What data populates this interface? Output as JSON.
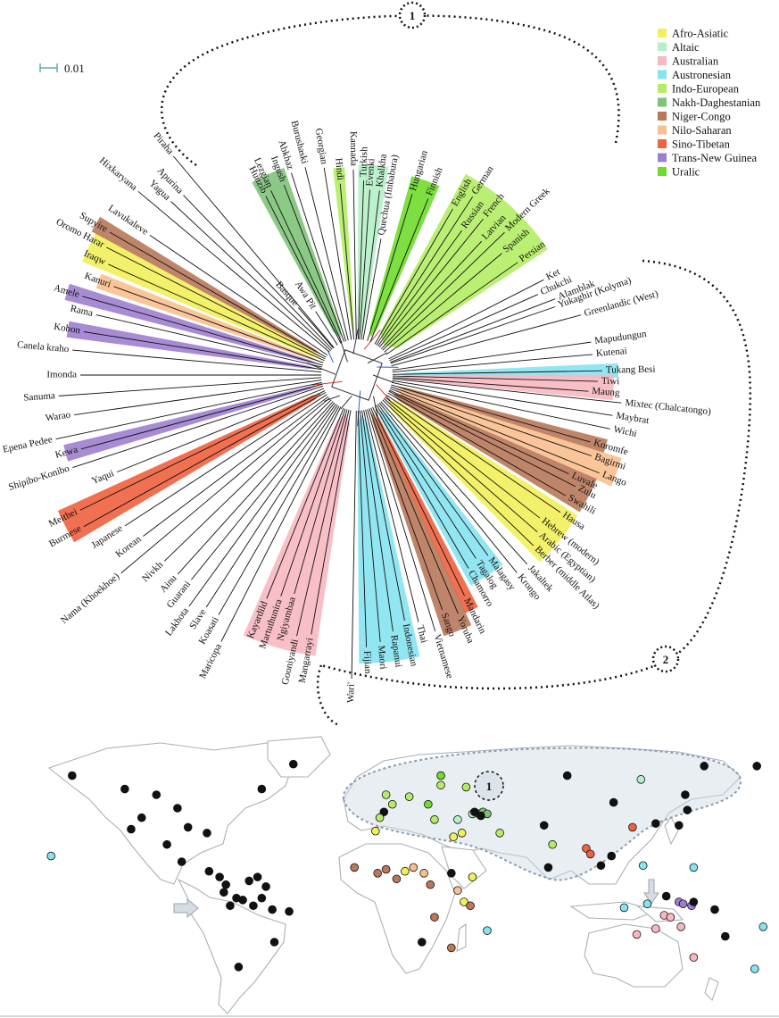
{
  "legend": [
    {
      "name": "Afro-Asiatic",
      "color": "#f2ef5a"
    },
    {
      "name": "Altaic",
      "color": "#b6f0c8"
    },
    {
      "name": "Australian",
      "color": "#f7b8c1"
    },
    {
      "name": "Austronesian",
      "color": "#86e3f0"
    },
    {
      "name": "Indo-European",
      "color": "#b4ed64"
    },
    {
      "name": "Nakh-Daghestanian",
      "color": "#7fc379"
    },
    {
      "name": "Niger-Congo",
      "color": "#b8785a"
    },
    {
      "name": "Nilo-Saharan",
      "color": "#f9bf8e"
    },
    {
      "name": "Sino-Tibetan",
      "color": "#f0613e"
    },
    {
      "name": "Trans-New Guinea",
      "color": "#9d7fd0"
    },
    {
      "name": "Uralic",
      "color": "#6fdc2b"
    }
  ],
  "scale_label": "0.01",
  "region_labels": [
    "1",
    "2"
  ],
  "map_region_label": "1",
  "languages": [
    {
      "name": "Basque",
      "family": null,
      "angle": -131,
      "r": 100
    },
    {
      "name": "Awa Pit",
      "family": null,
      "angle": -123,
      "r": 85
    },
    {
      "name": "Hunzib",
      "family": "Nakh-Daghestanian",
      "angle": -117,
      "r": 225
    },
    {
      "name": "Lezgian",
      "family": "Nakh-Daghestanian",
      "angle": -115,
      "r": 228
    },
    {
      "name": "Ingush",
      "family": "Nakh-Daghestanian",
      "angle": -111,
      "r": 228
    },
    {
      "name": "Abkhaz",
      "family": null,
      "angle": -108,
      "r": 238
    },
    {
      "name": "Burushaski",
      "family": null,
      "angle": -104,
      "r": 240
    },
    {
      "name": "Georgian",
      "family": null,
      "angle": -99,
      "r": 235
    },
    {
      "name": "Hindi",
      "family": "Indo-European",
      "angle": -95,
      "r": 215
    },
    {
      "name": "Kannada",
      "family": null,
      "angle": -91,
      "r": 230
    },
    {
      "name": "Turkish",
      "family": "Altaic",
      "angle": -88,
      "r": 218
    },
    {
      "name": "Evenki",
      "family": "Altaic",
      "angle": -86,
      "r": 208
    },
    {
      "name": "Khalkha",
      "family": "Altaic",
      "angle": -83,
      "r": 208
    },
    {
      "name": "Quechua (Imbabura)",
      "family": null,
      "angle": -80,
      "r": 155
    },
    {
      "name": "Hungarian",
      "family": "Uralic",
      "angle": -73,
      "r": 212
    },
    {
      "name": "Finnish",
      "family": "Uralic",
      "angle": -68,
      "r": 213
    },
    {
      "name": "English",
      "family": "Indo-European",
      "angle": -60,
      "r": 215
    },
    {
      "name": "German",
      "family": "Indo-European",
      "angle": -57,
      "r": 238
    },
    {
      "name": "Russian",
      "family": "Indo-European",
      "angle": -54,
      "r": 200
    },
    {
      "name": "French",
      "family": "Indo-European",
      "angle": -51,
      "r": 225
    },
    {
      "name": "Latvian",
      "family": "Indo-European",
      "angle": -47,
      "r": 205
    },
    {
      "name": "Modern Greek",
      "family": "Indo-European",
      "angle": -44,
      "r": 230
    },
    {
      "name": "Spanish",
      "family": "Indo-European",
      "angle": -40,
      "r": 212
    },
    {
      "name": "Persian",
      "family": "Indo-European",
      "angle": -35,
      "r": 220
    },
    {
      "name": "Ket",
      "family": null,
      "angle": -27,
      "r": 235
    },
    {
      "name": "Chukchi",
      "family": null,
      "angle": -24,
      "r": 222
    },
    {
      "name": "Alamblak",
      "family": null,
      "angle": -21,
      "r": 238
    },
    {
      "name": "Yukaghir (Kolyma)",
      "family": null,
      "angle": -19,
      "r": 235
    },
    {
      "name": "Greenlandic (West)",
      "family": null,
      "angle": -15,
      "r": 260
    },
    {
      "name": "Mapudungun",
      "family": null,
      "angle": -8,
      "r": 265
    },
    {
      "name": "Kutenai",
      "family": null,
      "angle": -5,
      "r": 265
    },
    {
      "name": "Tukang Besi",
      "family": "Austronesian",
      "angle": -1,
      "r": 275
    },
    {
      "name": "Tiwi",
      "family": "Australian",
      "angle": 1.5,
      "r": 270
    },
    {
      "name": "Maung",
      "family": "Australian",
      "angle": 4,
      "r": 260
    },
    {
      "name": "Mixtec (Chalcatongo)",
      "family": null,
      "angle": 6,
      "r": 298
    },
    {
      "name": "Maybrat",
      "family": null,
      "angle": 9,
      "r": 290
    },
    {
      "name": "Wichi",
      "family": null,
      "angle": 12,
      "r": 290
    },
    {
      "name": "Koromfe",
      "family": "Niger-Congo",
      "angle": 16,
      "r": 272
    },
    {
      "name": "Bagirmi",
      "family": "Nilo-Saharan",
      "angle": 19,
      "r": 278
    },
    {
      "name": "Lango",
      "family": "Nilo-Saharan",
      "angle": 22,
      "r": 293
    },
    {
      "name": "Luvale",
      "family": "Niger-Congo",
      "angle": 25,
      "r": 262
    },
    {
      "name": "Zulu",
      "family": "Niger-Congo",
      "angle": 27,
      "r": 275
    },
    {
      "name": "Swahili",
      "family": "Niger-Congo",
      "angle": 30,
      "r": 270
    },
    {
      "name": "Hausa",
      "family": "Afro-Asiatic",
      "angle": 34,
      "r": 275
    },
    {
      "name": "Hebrew (modern)",
      "family": "Afro-Asiatic",
      "angle": 38,
      "r": 260
    },
    {
      "name": "Arabic (Egyptian)",
      "family": "Afro-Asiatic",
      "angle": 41,
      "r": 268
    },
    {
      "name": "Berber (middle Atlas)",
      "family": "Afro-Asiatic",
      "angle": 44,
      "r": 275
    },
    {
      "name": "Jakaltek",
      "family": null,
      "angle": 48,
      "r": 285
    },
    {
      "name": "Krongo",
      "family": null,
      "angle": 51,
      "r": 285
    },
    {
      "name": "Malagasy",
      "family": "Austronesian",
      "angle": 54,
      "r": 250
    },
    {
      "name": "Tagalog",
      "family": "Austronesian",
      "angle": 57,
      "r": 245
    },
    {
      "name": "Chamorro",
      "family": "Austronesian",
      "angle": 60,
      "r": 250
    },
    {
      "name": "Mandarin",
      "family": "Sino-Tibetan",
      "angle": 64,
      "r": 275
    },
    {
      "name": "Yoruba",
      "family": "Niger-Congo",
      "angle": 67,
      "r": 290
    },
    {
      "name": "Sango",
      "family": "Niger-Congo",
      "angle": 70,
      "r": 280
    },
    {
      "name": "Vietnamese",
      "family": null,
      "angle": 73,
      "r": 300
    },
    {
      "name": "Thai",
      "family": null,
      "angle": 76,
      "r": 285
    },
    {
      "name": "Indonesian",
      "family": "Austronesian",
      "angle": 79,
      "r": 280
    },
    {
      "name": "Rapanui",
      "family": "Austronesian",
      "angle": 82,
      "r": 290
    },
    {
      "name": "Maori",
      "family": "Austronesian",
      "angle": 85,
      "r": 300
    },
    {
      "name": "Fijian",
      "family": "Austronesian",
      "angle": 88,
      "r": 305
    },
    {
      "name": "Wari'",
      "family": null,
      "angle": 91,
      "r": 340
    },
    {
      "name": "Mangarrayi",
      "family": "Australian",
      "angle": 100,
      "r": 295
    },
    {
      "name": "Gooniyandi",
      "family": "Australian",
      "angle": 103,
      "r": 300
    },
    {
      "name": "Ngiyambaa",
      "family": "Australian",
      "angle": 106,
      "r": 255
    },
    {
      "name": "Martuthunira",
      "family": "Australian",
      "angle": 109,
      "r": 262
    },
    {
      "name": "Kayardild",
      "family": "Australian",
      "angle": 112,
      "r": 270
    },
    {
      "name": "Maricopa",
      "family": null,
      "angle": 117,
      "r": 335
    },
    {
      "name": "Koasati",
      "family": null,
      "angle": 120,
      "r": 310
    },
    {
      "name": "Slave",
      "family": null,
      "angle": 123,
      "r": 310
    },
    {
      "name": "Lakhota",
      "family": null,
      "angle": 126,
      "r": 320
    },
    {
      "name": "Guarani",
      "family": null,
      "angle": 129,
      "r": 295
    },
    {
      "name": "Ainu",
      "family": null,
      "angle": 132,
      "r": 300
    },
    {
      "name": "Nivkh",
      "family": null,
      "angle": 136,
      "r": 300
    },
    {
      "name": "Nama (Khoekhoe)",
      "family": null,
      "angle": 140,
      "r": 345
    },
    {
      "name": "Korean",
      "family": null,
      "angle": 143,
      "r": 300
    },
    {
      "name": "Japanese",
      "family": null,
      "angle": 147,
      "r": 310
    },
    {
      "name": "Burmese",
      "family": "Sino-Tibetan",
      "angle": 151,
      "r": 350
    },
    {
      "name": "Meithei",
      "family": "Sino-Tibetan",
      "angle": 154,
      "r": 345
    },
    {
      "name": "Yaqui",
      "family": null,
      "angle": 158,
      "r": 290
    },
    {
      "name": "Shipibo-Konibo",
      "family": null,
      "angle": 162,
      "r": 335
    },
    {
      "name": "Kewa",
      "family": "Trans-New Guinea",
      "angle": 165,
      "r": 320
    },
    {
      "name": "Epena Pedee",
      "family": null,
      "angle": 168,
      "r": 345
    },
    {
      "name": "Warao",
      "family": null,
      "angle": 172,
      "r": 320
    },
    {
      "name": "Sanuma",
      "family": null,
      "angle": 176,
      "r": 335
    },
    {
      "name": "Imonda",
      "family": null,
      "angle": 180,
      "r": 310
    },
    {
      "name": "Canela kraho",
      "family": null,
      "angle": 185,
      "r": 320
    },
    {
      "name": "Kobon",
      "family": "Trans-New Guinea",
      "angle": 189,
      "r": 310
    },
    {
      "name": "Rama",
      "family": null,
      "angle": 193,
      "r": 300
    },
    {
      "name": "Amele",
      "family": "Trans-New Guinea",
      "angle": 196,
      "r": 320
    },
    {
      "name": "Kanuri",
      "family": "Nilo-Saharan",
      "angle": 200,
      "r": 290
    },
    {
      "name": "Iraqw",
      "family": "Afro-Asiatic",
      "angle": 204,
      "r": 305
    },
    {
      "name": "Oromo Harar",
      "family": "Afro-Asiatic",
      "angle": 207,
      "r": 315
    },
    {
      "name": "Supyire",
      "family": "Niger-Congo",
      "angle": 210,
      "r": 320
    },
    {
      "name": "Lavukaleve",
      "family": null,
      "angle": 214,
      "r": 280
    },
    {
      "name": "Hixkaryana",
      "family": null,
      "angle": 220,
      "r": 320
    },
    {
      "name": "Yagua",
      "family": null,
      "angle": 223,
      "r": 285
    },
    {
      "name": "Apurina",
      "family": null,
      "angle": 226,
      "r": 280
    },
    {
      "name": "Piraha",
      "family": null,
      "angle": 230,
      "r": 320
    }
  ],
  "map_points": [
    {
      "lon": -150,
      "lat": 62,
      "family": null
    },
    {
      "lon": -125,
      "lat": 55,
      "family": null
    },
    {
      "lon": -110,
      "lat": 52,
      "family": null
    },
    {
      "lon": -100,
      "lat": 45,
      "family": null
    },
    {
      "lon": -117,
      "lat": 40,
      "family": null
    },
    {
      "lon": -122,
      "lat": 34,
      "family": null
    },
    {
      "lon": -95,
      "lat": 35,
      "family": null
    },
    {
      "lon": -86,
      "lat": 32,
      "family": null
    },
    {
      "lon": -105,
      "lat": 26,
      "family": null
    },
    {
      "lon": -98,
      "lat": 17,
      "family": null
    },
    {
      "lon": -85,
      "lat": 12,
      "family": null
    },
    {
      "lon": -80,
      "lat": 9,
      "family": null
    },
    {
      "lon": -77,
      "lat": 5,
      "family": null
    },
    {
      "lon": -78,
      "lat": 1,
      "family": null
    },
    {
      "lon": -72,
      "lat": -2,
      "family": null
    },
    {
      "lon": -75,
      "lat": -6,
      "family": null
    },
    {
      "lon": -69,
      "lat": -3,
      "family": null
    },
    {
      "lon": -64,
      "lat": -6,
      "family": null
    },
    {
      "lon": -60,
      "lat": -2,
      "family": null
    },
    {
      "lon": -58,
      "lat": 4,
      "family": null
    },
    {
      "lon": -66,
      "lat": 7,
      "family": null
    },
    {
      "lon": -62,
      "lat": 9,
      "family": null
    },
    {
      "lon": -55,
      "lat": -8,
      "family": null
    },
    {
      "lon": -47,
      "lat": -9,
      "family": null
    },
    {
      "lon": -54,
      "lat": -25,
      "family": null
    },
    {
      "lon": -71,
      "lat": -38,
      "family": null
    },
    {
      "lon": -45,
      "lat": 68,
      "family": null
    },
    {
      "lon": -60,
      "lat": 55,
      "family": null
    },
    {
      "lon": -160,
      "lat": 20,
      "family": "Austronesian"
    },
    {
      "lon": -2,
      "lat": 43,
      "family": null
    },
    {
      "lon": -1,
      "lat": 52,
      "family": "Indo-European"
    },
    {
      "lon": 10,
      "lat": 51,
      "family": "Indo-European"
    },
    {
      "lon": 2,
      "lat": 47,
      "family": "Indo-European"
    },
    {
      "lon": -4,
      "lat": 40,
      "family": "Indo-European"
    },
    {
      "lon": 25,
      "lat": 62,
      "family": "Uralic"
    },
    {
      "lon": 19,
      "lat": 47,
      "family": "Uralic"
    },
    {
      "lon": 25,
      "lat": 57,
      "family": "Indo-European"
    },
    {
      "lon": 37,
      "lat": 56,
      "family": "Indo-European"
    },
    {
      "lon": 22,
      "lat": 39,
      "family": "Indo-European"
    },
    {
      "lon": 40,
      "lat": 42,
      "family": "Altaic"
    },
    {
      "lon": 43,
      "lat": 42,
      "family": "Nakh-Daghestanian"
    },
    {
      "lon": 45,
      "lat": 43,
      "family": "Nakh-Daghestanian"
    },
    {
      "lon": 47,
      "lat": 42,
      "family": "Nakh-Daghestanian"
    },
    {
      "lon": 44,
      "lat": 41,
      "family": null
    },
    {
      "lon": 41,
      "lat": 43,
      "family": null
    },
    {
      "lon": 33,
      "lat": 39,
      "family": "Altaic"
    },
    {
      "lon": 53,
      "lat": 32,
      "family": "Indo-European"
    },
    {
      "lon": -6,
      "lat": 33,
      "family": "Afro-Asiatic"
    },
    {
      "lon": 31,
      "lat": 30,
      "family": "Afro-Asiatic"
    },
    {
      "lon": 35,
      "lat": 32,
      "family": "Afro-Asiatic"
    },
    {
      "lon": 8,
      "lat": 12,
      "family": "Afro-Asiatic"
    },
    {
      "lon": 40,
      "lat": 9,
      "family": "Afro-Asiatic"
    },
    {
      "lon": 36,
      "lat": -4,
      "family": "Afro-Asiatic"
    },
    {
      "lon": -16,
      "lat": 14,
      "family": "Niger-Congo"
    },
    {
      "lon": -5,
      "lat": 11,
      "family": "Niger-Congo"
    },
    {
      "lon": -1,
      "lat": 13,
      "family": "Niger-Congo"
    },
    {
      "lon": 4,
      "lat": 8,
      "family": "Niger-Congo"
    },
    {
      "lon": 20,
      "lat": 5,
      "family": "Niger-Congo"
    },
    {
      "lon": 22,
      "lat": -12,
      "family": "Niger-Congo"
    },
    {
      "lon": 30,
      "lat": -28,
      "family": "Niger-Congo"
    },
    {
      "lon": 39,
      "lat": -6,
      "family": "Niger-Congo"
    },
    {
      "lon": 12,
      "lat": 14,
      "family": "Nilo-Saharan"
    },
    {
      "lon": 17,
      "lat": 11,
      "family": "Nilo-Saharan"
    },
    {
      "lon": 33,
      "lat": 2,
      "family": "Nilo-Saharan"
    },
    {
      "lon": 30,
      "lat": 11,
      "family": null
    },
    {
      "lon": 16,
      "lat": -25,
      "family": null
    },
    {
      "lon": 47,
      "lat": -19,
      "family": "Austronesian"
    },
    {
      "lon": 78,
      "lat": 26,
      "family": "Indo-European"
    },
    {
      "lon": 76,
      "lat": 14,
      "family": null
    },
    {
      "lon": 74,
      "lat": 36,
      "family": null
    },
    {
      "lon": 94,
      "lat": 24,
      "family": "Sino-Tibetan"
    },
    {
      "lon": 96,
      "lat": 21,
      "family": "Sino-Tibetan"
    },
    {
      "lon": 116,
      "lat": 35,
      "family": "Sino-Tibetan"
    },
    {
      "lon": 101,
      "lat": 15,
      "family": null
    },
    {
      "lon": 106,
      "lat": 20,
      "family": null
    },
    {
      "lon": 127,
      "lat": 37,
      "family": null
    },
    {
      "lon": 138,
      "lat": 36,
      "family": null
    },
    {
      "lon": 142,
      "lat": 44,
      "family": null
    },
    {
      "lon": 141,
      "lat": 52,
      "family": null
    },
    {
      "lon": 107,
      "lat": 48,
      "family": null
    },
    {
      "lon": 120,
      "lat": 60,
      "family": "Altaic"
    },
    {
      "lon": 85,
      "lat": 62,
      "family": null
    },
    {
      "lon": 150,
      "lat": 67,
      "family": null
    },
    {
      "lon": 175,
      "lat": 67,
      "family": null
    },
    {
      "lon": 121,
      "lat": 15,
      "family": "Austronesian"
    },
    {
      "lon": 145,
      "lat": 14,
      "family": "Austronesian"
    },
    {
      "lon": 112,
      "lat": -7,
      "family": "Austronesian"
    },
    {
      "lon": 123,
      "lat": -5,
      "family": "Austronesian"
    },
    {
      "lon": 132,
      "lat": -1,
      "family": null
    },
    {
      "lon": 138,
      "lat": -4,
      "family": "Trans-New Guinea"
    },
    {
      "lon": 140,
      "lat": -5,
      "family": "Trans-New Guinea"
    },
    {
      "lon": 144,
      "lat": -6,
      "family": "Trans-New Guinea"
    },
    {
      "lon": 145,
      "lat": -4,
      "family": null
    },
    {
      "lon": 155,
      "lat": -8,
      "family": null
    },
    {
      "lon": 178,
      "lat": -17,
      "family": "Austronesian"
    },
    {
      "lon": 174,
      "lat": -39,
      "family": "Austronesian"
    },
    {
      "lon": 131,
      "lat": -11,
      "family": "Australian"
    },
    {
      "lon": 134,
      "lat": -12,
      "family": "Australian"
    },
    {
      "lon": 139,
      "lat": -17,
      "family": "Australian"
    },
    {
      "lon": 118,
      "lat": -21,
      "family": "Australian"
    },
    {
      "lon": 127,
      "lat": -18,
      "family": "Australian"
    },
    {
      "lon": 145,
      "lat": -33,
      "family": "Australian"
    },
    {
      "lon": 160,
      "lat": -22,
      "family": null
    }
  ]
}
